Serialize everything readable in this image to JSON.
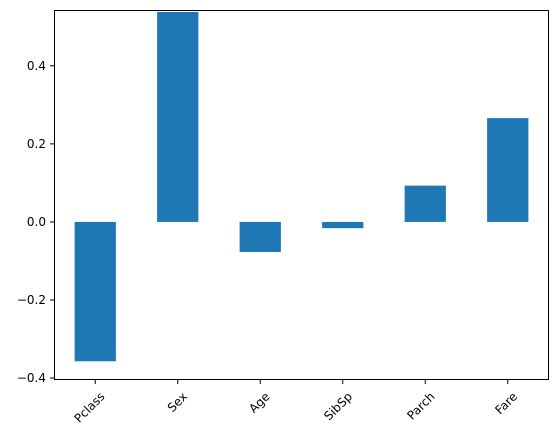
{
  "chart_data": {
    "type": "bar",
    "categories": [
      "Pclass",
      "Sex",
      "Age",
      "SibSp",
      "Parch",
      "Fare"
    ],
    "values": [
      -0.357,
      0.538,
      -0.077,
      -0.016,
      0.093,
      0.266
    ],
    "title": "",
    "xlabel": "",
    "ylabel": "",
    "ylim": [
      -0.405,
      0.543
    ],
    "yticks": [
      -0.4,
      -0.2,
      0.0,
      0.2,
      0.4
    ],
    "ytick_labels": [
      "−0.4",
      "−0.2",
      "0.0",
      "0.2",
      "0.4"
    ],
    "xtick_rotation_deg": 45,
    "grid": false,
    "legend": "none",
    "bar_color": "#1f77b4"
  }
}
